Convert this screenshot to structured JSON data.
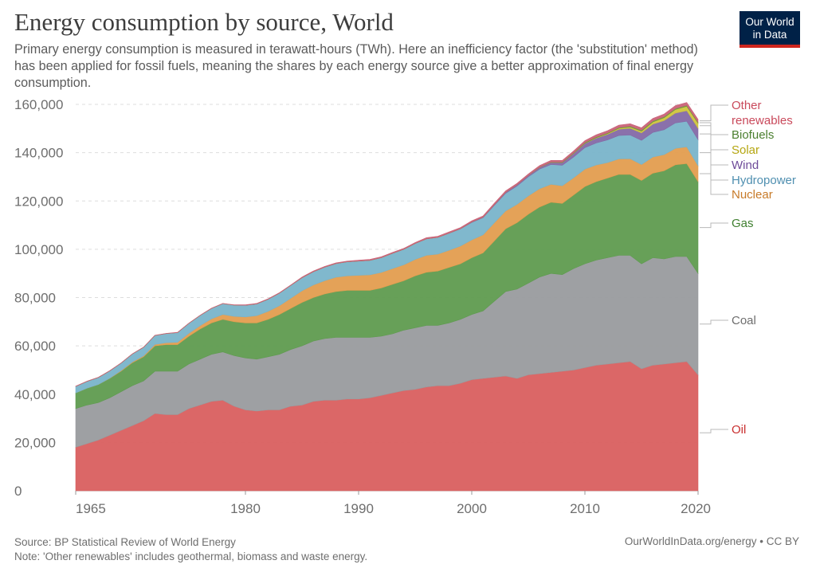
{
  "header": {
    "title": "Energy consumption by source, World",
    "subtitle": "Primary energy consumption is measured in terawatt-hours (TWh). Here an inefficiency factor (the 'substitution' method) has been applied for fossil fuels, meaning the shares by each energy source give a better approximation of final energy consumption."
  },
  "logo": {
    "line1": "Our World",
    "line2": "in Data"
  },
  "footer": {
    "source": "Source: BP Statistical Review of World Energy",
    "note": "Note: 'Other renewables' includes geothermal, biomass and waste energy.",
    "right": "OurWorldInData.org/energy • CC BY"
  },
  "chart_data": {
    "type": "area",
    "stacked": true,
    "x": [
      1965,
      1966,
      1967,
      1968,
      1969,
      1970,
      1971,
      1972,
      1973,
      1974,
      1975,
      1976,
      1977,
      1978,
      1979,
      1980,
      1981,
      1982,
      1983,
      1984,
      1985,
      1986,
      1987,
      1988,
      1989,
      1990,
      1991,
      1992,
      1993,
      1994,
      1995,
      1996,
      1997,
      1998,
      1999,
      2000,
      2001,
      2002,
      2003,
      2004,
      2005,
      2006,
      2007,
      2008,
      2009,
      2010,
      2011,
      2012,
      2013,
      2014,
      2015,
      2016,
      2017,
      2018,
      2019,
      2020
    ],
    "x_ticks": [
      "1965",
      "1980",
      "1990",
      "2000",
      "2010",
      "2020"
    ],
    "y_ticks": [
      "0",
      "20,000",
      "40,000",
      "60,000",
      "80,000",
      "100,000",
      "120,000",
      "140,000",
      "160,000"
    ],
    "ylim": [
      0,
      160000
    ],
    "grid": "horizontal dashed",
    "series": [
      {
        "name": "Oil",
        "color": "#d95f5f",
        "values": [
          18000,
          19500,
          21000,
          23000,
          25000,
          27000,
          29000,
          32000,
          31500,
          31500,
          34000,
          35500,
          37000,
          37500,
          35000,
          33500,
          33000,
          33500,
          33500,
          35000,
          35500,
          37000,
          37500,
          37500,
          38000,
          38000,
          38500,
          39500,
          40500,
          41500,
          42000,
          43000,
          43500,
          43500,
          44500,
          46000,
          46500,
          47000,
          47500,
          46500,
          48000,
          48500,
          49000,
          49500,
          50000,
          51000,
          52000,
          52500,
          53000,
          53500,
          50500,
          52000,
          52500,
          53000,
          53500,
          48000
        ]
      },
      {
        "name": "Coal",
        "color": "#999b9e",
        "values": [
          16000,
          16000,
          15500,
          15500,
          16000,
          16500,
          16500,
          17500,
          18000,
          18000,
          18500,
          19000,
          19500,
          20000,
          21000,
          21500,
          21500,
          22000,
          23000,
          23500,
          24500,
          25000,
          25500,
          26000,
          25500,
          25500,
          25000,
          24500,
          24500,
          25000,
          25500,
          25500,
          25000,
          26000,
          26500,
          27000,
          28000,
          31500,
          35000,
          37000,
          38000,
          40000,
          41000,
          40000,
          42000,
          43000,
          43500,
          44000,
          44500,
          44000,
          43500,
          44500,
          43500,
          44000,
          43500,
          42000
        ]
      },
      {
        "name": "Gas",
        "color": "#5f9b4f",
        "values": [
          6500,
          7000,
          7500,
          8000,
          8500,
          9500,
          10000,
          10500,
          11000,
          11000,
          11500,
          12500,
          13000,
          13500,
          14000,
          14500,
          15000,
          15500,
          16500,
          17000,
          18000,
          18000,
          18500,
          19000,
          19500,
          19500,
          19500,
          20000,
          20500,
          20500,
          21500,
          22000,
          22500,
          23000,
          23000,
          23500,
          24000,
          25000,
          26000,
          27500,
          28500,
          29000,
          29500,
          29500,
          30500,
          32000,
          32500,
          33000,
          33500,
          33500,
          34500,
          35000,
          36500,
          38000,
          38500,
          38000
        ]
      },
      {
        "name": "Nuclear",
        "color": "#e39d4f",
        "values": [
          0,
          0,
          0,
          100,
          200,
          300,
          400,
          600,
          800,
          1000,
          1200,
          1400,
          1700,
          2000,
          2200,
          2500,
          3000,
          3300,
          3600,
          4200,
          4800,
          5200,
          5500,
          5900,
          6000,
          6200,
          6400,
          6400,
          6500,
          6600,
          6800,
          7000,
          7000,
          7100,
          7300,
          7400,
          7500,
          7500,
          7400,
          7600,
          7600,
          7600,
          7400,
          7300,
          7100,
          7200,
          6900,
          6400,
          6400,
          6500,
          6600,
          6700,
          6700,
          6800,
          6900,
          6600
        ]
      },
      {
        "name": "Hydropower",
        "color": "#79b4ca",
        "values": [
          2700,
          2800,
          2900,
          3000,
          3100,
          3300,
          3500,
          3700,
          3800,
          4000,
          4100,
          4200,
          4300,
          4500,
          4700,
          4800,
          4900,
          5000,
          5200,
          5300,
          5400,
          5500,
          5600,
          5700,
          5800,
          5900,
          6000,
          6100,
          6300,
          6400,
          6600,
          6800,
          6900,
          7000,
          7100,
          7200,
          7100,
          7200,
          7300,
          7600,
          7900,
          8100,
          8200,
          8500,
          8600,
          8900,
          9100,
          9400,
          9700,
          9800,
          10000,
          10200,
          10300,
          10500,
          10600,
          10800
        ]
      },
      {
        "name": "Wind",
        "color": "#8469a6",
        "values": [
          0,
          0,
          0,
          0,
          0,
          0,
          0,
          0,
          0,
          0,
          0,
          0,
          0,
          0,
          0,
          0,
          0,
          0,
          0,
          0,
          0,
          0,
          0,
          0,
          0,
          0,
          0,
          0,
          0,
          0,
          0,
          0,
          0,
          100,
          100,
          200,
          200,
          300,
          400,
          500,
          600,
          700,
          900,
          1100,
          1400,
          1700,
          2000,
          2300,
          2600,
          2800,
          3100,
          3400,
          3800,
          4100,
          4400,
          4700
        ]
      },
      {
        "name": "Solar",
        "color": "#cfc43d",
        "values": [
          0,
          0,
          0,
          0,
          0,
          0,
          0,
          0,
          0,
          0,
          0,
          0,
          0,
          0,
          0,
          0,
          0,
          0,
          0,
          0,
          0,
          0,
          0,
          0,
          0,
          0,
          0,
          0,
          0,
          0,
          0,
          0,
          0,
          0,
          0,
          0,
          0,
          0,
          0,
          0,
          0,
          0,
          0,
          0,
          100,
          100,
          200,
          300,
          400,
          500,
          700,
          900,
          1200,
          1500,
          1800,
          2100
        ]
      },
      {
        "name": "Biofuels",
        "color": "#6a9b3d",
        "values": [
          0,
          0,
          0,
          0,
          0,
          0,
          0,
          0,
          0,
          0,
          0,
          0,
          0,
          0,
          0,
          0,
          0,
          0,
          0,
          0,
          0,
          0,
          0,
          0,
          0,
          0,
          0,
          0,
          0,
          0,
          0,
          0,
          0,
          0,
          0,
          0,
          0,
          0,
          0,
          0,
          0,
          100,
          100,
          200,
          200,
          300,
          300,
          300,
          300,
          400,
          400,
          400,
          400,
          400,
          400,
          400
        ]
      },
      {
        "name": "Other renewables",
        "color": "#c96378",
        "values": [
          100,
          100,
          100,
          100,
          100,
          100,
          100,
          100,
          100,
          100,
          100,
          100,
          100,
          100,
          100,
          200,
          200,
          200,
          200,
          200,
          300,
          300,
          300,
          300,
          300,
          400,
          400,
          400,
          400,
          400,
          400,
          500,
          500,
          500,
          500,
          500,
          500,
          600,
          600,
          600,
          600,
          700,
          700,
          700,
          800,
          800,
          900,
          900,
          1000,
          1000,
          1000,
          1100,
          1100,
          1200,
          1200,
          1200
        ]
      }
    ],
    "labels": [
      {
        "name": "Other",
        "color": "#c9495b"
      },
      {
        "name": "renewables",
        "color": "#c9495b"
      },
      {
        "name": "Biofuels",
        "color": "#4b7f2f"
      },
      {
        "name": "Solar",
        "color": "#b5a611"
      },
      {
        "name": "Wind",
        "color": "#6e4b99"
      },
      {
        "name": "Hydropower",
        "color": "#4f8fb0"
      },
      {
        "name": "Nuclear",
        "color": "#c77a28"
      },
      {
        "name": "Gas",
        "color": "#3f7f2f"
      },
      {
        "name": "Coal",
        "color": "#6e6e6e"
      },
      {
        "name": "Oil",
        "color": "#c92f2f"
      }
    ]
  }
}
